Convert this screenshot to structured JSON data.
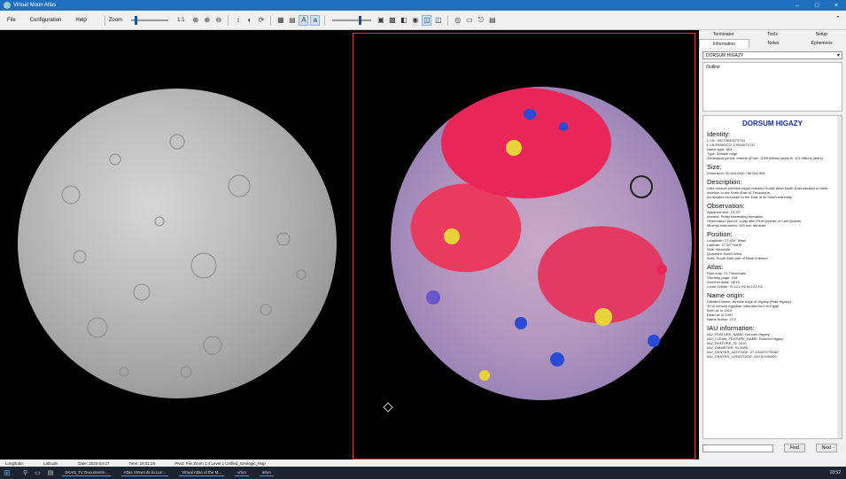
{
  "window": {
    "title": "Virtual Moon Atlas"
  },
  "menu": [
    "File",
    "Configuration",
    "Help"
  ],
  "toolbar": {
    "zoom_label": "Zoom",
    "zoom_value": "1:1"
  },
  "sidebar": {
    "tabs_row1": [
      "Terminator",
      "Tools",
      "Setup"
    ],
    "tabs_row2": [
      "Information",
      "Notes",
      "Ephemeris"
    ],
    "combo_value": "DORSUM HIGAZY",
    "outline_label": "Outline",
    "info": {
      "title": "DORSUM HIGAZY",
      "sections": [
        {
          "heading": "Identity:",
          "lines": [
            "L.I.N.: 00279040070754",
            "L.I.N.REMOCO: 27604071747",
            "Name type: IAU",
            "Type: Wrinkle ridge",
            "Geological period: Imbrian (From -3.85 billions years to -3.2 billions years)"
          ]
        },
        {
          "heading": "Size:",
          "lines": [
            "Dimension: 90.0x4.0Km / 56.0x2.5Mi"
          ]
        },
        {
          "heading": "Description:",
          "lines": [
            "Little dorsum (wrinkle ridge) oriented South-West North-East situated in Mare Imbrium to the North-East of Timocharis.",
            "An isolated mountain to the East of its South extremity."
          ]
        },
        {
          "heading": "Observation:",
          "lines": [
            "Apparent size: 15.20\"",
            "Interest: Pretty interesting formation",
            "Observation period: 1 day after First Quarter or Last Quarter",
            "Minimal Instrument: 100 mm refractor"
          ]
        },
        {
          "heading": "Position:",
          "lines": [
            "Longitude: 17.400° West",
            "Latitude: 27.00° North",
            "Side: Nearside",
            "Quadrant: North-West",
            "Area: South-East part of Mare Imbrium"
          ]
        },
        {
          "heading": "Atlas:",
          "lines": [
            "Rukl map: 21 Timocharis",
            "Viscardy page: 108",
            "Wrochet Atlas: 18/19",
            "Lunar Orbiter: IV-121-H2 IV-122-H1"
          ]
        },
        {
          "heading": "Name origin:",
          "lines": [
            "Detailed Name: Wrinkle ridge of Higazy (Riad Higazy)",
            "20 th century egyptian naturalist born in Egypt",
            "Born at: in 1919",
            "Dead at: in 1997",
            "Name Author: LTO"
          ]
        },
        {
          "heading": "IAU information:",
          "lines": [
            "IAU_FEATURE_NAME: Dorsum Higazy",
            "IAU_CLEAN_FEATURE_NAME: Dorsum Higazy",
            "IAU_FEATURE_ID: 1610",
            "IAU_DIAMETER: 91.6000",
            "IAU_CENTER_LATITUDE: 27.431423779987",
            "IAU_CENTER_LONGITUDE: 342.51330000"
          ]
        }
      ]
    },
    "find_button": "Find",
    "next_button": "Next"
  },
  "statusbar": [
    "Longitude:",
    "Latitude:",
    "Date: 2020-04-27",
    "Time: 19:01:25",
    "Pivot: File Zoom 1:4 Level 1 Unified_Geologic_Map"
  ],
  "taskbar": {
    "apps": [
      "SKAN_TV Documents...",
      "Atlas Virtuel de la Lun...",
      "Virtual Atlas of the M...",
      "vrlun",
      "atlun"
    ],
    "clock": "18:52"
  },
  "colors": {
    "accent": "#1f6fbf",
    "info_title": "#1a2d9c",
    "geo_mare": "#e8265a"
  }
}
